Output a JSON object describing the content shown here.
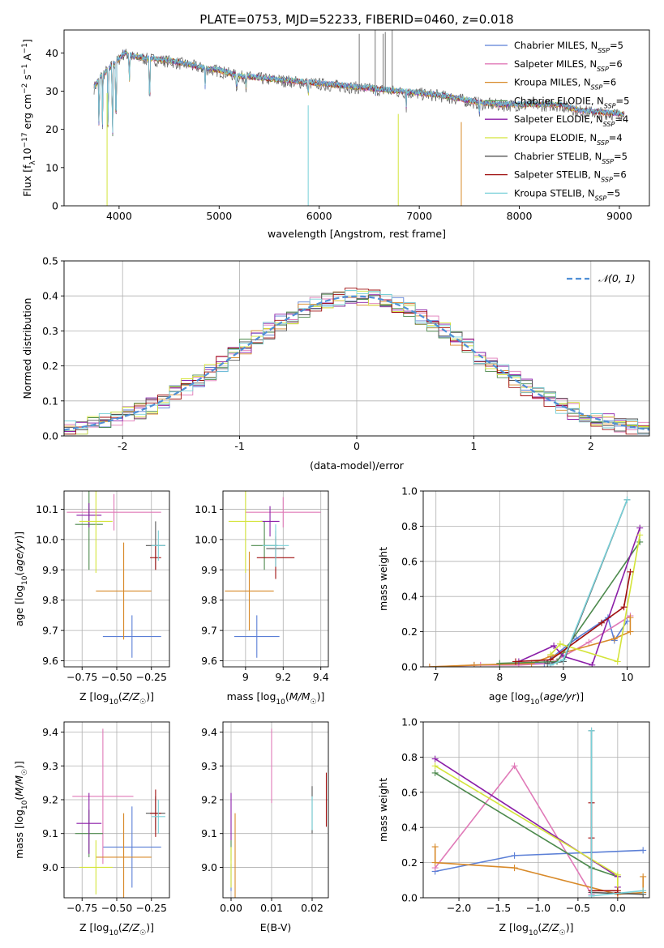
{
  "figure_title": "PLATE=0753, MJD=52233, FIBERID=0460, z=0.018",
  "colors": {
    "Chabrier MILES": "#5b7fd6",
    "Salpeter MILES": "#e07ab8",
    "Kroupa MILES": "#d88a2a",
    "Chabrier ELODIE": "#4d8a4d",
    "Salpeter ELODIE": "#8b1fa8",
    "Kroupa ELODIE": "#d4e43a",
    "Chabrier STELIB": "#555555",
    "Salpeter STELIB": "#a01010",
    "Kroupa STELIB": "#78d0d8",
    "model_line": "#4f8fd6",
    "grid": "#b0b0b0"
  },
  "chart_data": [
    {
      "id": "spectrum",
      "type": "line",
      "title": "",
      "xlabel": "wavelength [Angstrom, rest frame]",
      "ylabel": "Flux [f_λ 10^-17 erg cm^-2 s^-1 A^-1]",
      "xlim": [
        3450,
        9300
      ],
      "ylim": [
        0,
        46
      ],
      "xticks": [
        4000,
        5000,
        6000,
        7000,
        8000,
        9000
      ],
      "yticks": [
        0,
        10,
        20,
        30,
        40
      ],
      "grid": false,
      "legend_placement": "upper-right",
      "series": [
        {
          "name": "Chabrier MILES",
          "nssp": "5"
        },
        {
          "name": "Salpeter MILES",
          "nssp": "6"
        },
        {
          "name": "Kroupa MILES",
          "nssp": "6"
        },
        {
          "name": "Chabrier ELODIE",
          "nssp": "5"
        },
        {
          "name": "Salpeter ELODIE",
          "nssp": "4"
        },
        {
          "name": "Kroupa ELODIE",
          "nssp": "4"
        },
        {
          "name": "Chabrier STELIB",
          "nssp": "5"
        },
        {
          "name": "Salpeter STELIB",
          "nssp": "6"
        },
        {
          "name": "Kroupa STELIB",
          "nssp": "5"
        }
      ],
      "continuum": [
        [
          3750,
          31
        ],
        [
          3820,
          34
        ],
        [
          3900,
          36
        ],
        [
          3980,
          38
        ],
        [
          4050,
          40
        ],
        [
          4150,
          39
        ],
        [
          4300,
          38.5
        ],
        [
          4500,
          38
        ],
        [
          4700,
          37
        ],
        [
          4860,
          36
        ],
        [
          5000,
          35.5
        ],
        [
          5200,
          34
        ],
        [
          5400,
          33.5
        ],
        [
          5600,
          33
        ],
        [
          5800,
          32.5
        ],
        [
          6000,
          32
        ],
        [
          6200,
          31.5
        ],
        [
          6400,
          31
        ],
        [
          6600,
          30.5
        ],
        [
          6800,
          30
        ],
        [
          7000,
          29.5
        ],
        [
          7200,
          29
        ],
        [
          7400,
          28
        ],
        [
          7600,
          27
        ],
        [
          7800,
          26.5
        ],
        [
          8000,
          26.5
        ],
        [
          8200,
          26.5
        ],
        [
          8400,
          26.5
        ],
        [
          8600,
          25
        ],
        [
          8800,
          24.5
        ],
        [
          9050,
          24
        ]
      ],
      "absorption_lines": [
        [
          3800,
          16
        ],
        [
          3835,
          18
        ],
        [
          3890,
          14
        ],
        [
          3934,
          10
        ],
        [
          3969,
          12
        ],
        [
          4102,
          30
        ],
        [
          4305,
          20
        ],
        [
          4861,
          30
        ],
        [
          5175,
          29
        ],
        [
          5270,
          30
        ],
        [
          5890,
          28
        ],
        [
          6563,
          29
        ],
        [
          6870,
          26
        ],
        [
          7600,
          23
        ]
      ],
      "spikes": [
        [
          6400,
          45
        ],
        [
          6560,
          46
        ],
        [
          6640,
          45
        ],
        [
          6660,
          45.5
        ],
        [
          6730,
          46
        ]
      ],
      "dropouts": [
        {
          "x": 3880,
          "series": "Kroupa ELODIE"
        },
        {
          "x": 5890,
          "series": "Kroupa STELIB"
        },
        {
          "x": 6790,
          "series": "Kroupa ELODIE"
        },
        {
          "x": 7420,
          "series": "Kroupa MILES"
        }
      ]
    },
    {
      "id": "residuals",
      "type": "histogram",
      "xlabel": "(data-model)/error",
      "ylabel": "Normed distribution",
      "xlim": [
        -2.5,
        2.5
      ],
      "ylim": [
        0,
        0.5
      ],
      "xticks": [
        -2,
        -1,
        0,
        1,
        2
      ],
      "yticks": [
        0.0,
        0.1,
        0.2,
        0.3,
        0.4,
        0.5
      ],
      "grid": true,
      "bin_width": 0.1,
      "legend_placement": "upper-right",
      "model_legend": "𝒩(0, 1)"
    },
    {
      "id": "age_vs_Z",
      "type": "scatter",
      "xlabel": "Z [log10(Z/Z☉)]",
      "ylabel": "age  [log10(age/yr)]",
      "xlim": [
        -0.88,
        -0.12
      ],
      "ylim": [
        9.58,
        10.16
      ],
      "xticks": [
        -0.75,
        -0.5,
        -0.25
      ],
      "xtick_labels": [
        "−0.75",
        "−0.50",
        "−0.25"
      ],
      "yticks": [
        9.6,
        9.7,
        9.8,
        9.9,
        10.0,
        10.1
      ],
      "grid": true,
      "points": [
        {
          "series": "Chabrier MILES",
          "x": -0.39,
          "y": 9.68,
          "xerr": 0.21,
          "yerr": 0.07
        },
        {
          "series": "Salpeter MILES",
          "x": -0.52,
          "y": 10.09,
          "xerr": 0.34,
          "yerr": 0.06
        },
        {
          "series": "Kroupa MILES",
          "x": -0.45,
          "y": 9.83,
          "xerr": 0.2,
          "yerr": 0.16
        },
        {
          "series": "Chabrier ELODIE",
          "x": -0.7,
          "y": 10.05,
          "xerr": 0.1,
          "yerr": 0.15
        },
        {
          "series": "Salpeter ELODIE",
          "x": -0.7,
          "y": 10.08,
          "xerr": 0.09,
          "yerr": 0.04
        },
        {
          "series": "Kroupa ELODIE",
          "x": -0.65,
          "y": 10.06,
          "xerr": 0.12,
          "yerr": 0.17
        },
        {
          "series": "Chabrier STELIB",
          "x": -0.22,
          "y": 9.98,
          "xerr": 0.07,
          "yerr": 0.08
        },
        {
          "series": "Salpeter STELIB",
          "x": -0.22,
          "y": 9.94,
          "xerr": 0.04,
          "yerr": 0.04
        },
        {
          "series": "Kroupa STELIB",
          "x": -0.2,
          "y": 9.98,
          "xerr": 0.05,
          "yerr": 0.05
        }
      ]
    },
    {
      "id": "age_vs_mass",
      "type": "scatter",
      "xlabel": "mass [log10(M/M☉)]",
      "ylabel": "",
      "xlim": [
        8.88,
        9.44
      ],
      "ylim": [
        9.58,
        10.16
      ],
      "xticks": [
        9.0,
        9.2,
        9.4
      ],
      "yticks": [
        9.6,
        9.7,
        9.8,
        9.9,
        10.0,
        10.1
      ],
      "grid": true,
      "points": [
        {
          "series": "Chabrier MILES",
          "x": 9.06,
          "y": 9.68,
          "xerr": 0.12,
          "yerr": 0.07
        },
        {
          "series": "Salpeter MILES",
          "x": 9.2,
          "y": 10.09,
          "xerr": 0.2,
          "yerr": 0.05
        },
        {
          "series": "Kroupa MILES",
          "x": 9.02,
          "y": 9.83,
          "xerr": 0.13,
          "yerr": 0.13
        },
        {
          "series": "Chabrier ELODIE",
          "x": 9.1,
          "y": 9.98,
          "xerr": 0.07,
          "yerr": 0.08
        },
        {
          "series": "Salpeter ELODIE",
          "x": 9.13,
          "y": 10.06,
          "xerr": 0.05,
          "yerr": 0.05
        },
        {
          "series": "Kroupa ELODIE",
          "x": 9.0,
          "y": 10.06,
          "xerr": 0.09,
          "yerr": 0.17
        },
        {
          "series": "Chabrier STELIB",
          "x": 9.16,
          "y": 9.97,
          "xerr": 0.05,
          "yerr": 0.06
        },
        {
          "series": "Salpeter STELIB",
          "x": 9.16,
          "y": 9.94,
          "xerr": 0.1,
          "yerr": 0.07
        },
        {
          "series": "Kroupa STELIB",
          "x": 9.16,
          "y": 9.98,
          "xerr": 0.07,
          "yerr": 0.07
        }
      ]
    },
    {
      "id": "weight_vs_age",
      "type": "line",
      "xlabel": "age  [log10(age/yr)]",
      "ylabel": "mass weight",
      "xlim": [
        6.8,
        10.35
      ],
      "ylim": [
        0,
        1.0
      ],
      "xticks": [
        7,
        8,
        9,
        10
      ],
      "yticks": [
        0.0,
        0.2,
        0.4,
        0.6,
        0.8,
        1.0
      ],
      "grid": true,
      "series": [
        {
          "name": "Chabrier MILES",
          "x": [
            7.6,
            8.7,
            9.2,
            9.7,
            9.8,
            10.0
          ],
          "y": [
            0.01,
            0.02,
            0.16,
            0.28,
            0.15,
            0.26
          ]
        },
        {
          "name": "Salpeter MILES",
          "x": [
            6.9,
            7.7,
            8.3,
            8.8,
            9.4,
            10.05
          ],
          "y": [
            0.0,
            0.01,
            0.01,
            0.02,
            0.14,
            0.29
          ]
        },
        {
          "name": "Kroupa MILES",
          "x": [
            6.9,
            7.6,
            8.5,
            8.8,
            9.8,
            10.05,
            10.05
          ],
          "y": [
            0.0,
            0.01,
            0.02,
            0.06,
            0.16,
            0.2,
            0.28
          ]
        },
        {
          "name": "Chabrier ELODIE",
          "x": [
            8.0,
            8.9,
            10.2
          ],
          "y": [
            0.02,
            0.03,
            0.71
          ]
        },
        {
          "name": "Salpeter ELODIE",
          "x": [
            8.3,
            8.85,
            9.0,
            9.45,
            10.2
          ],
          "y": [
            0.03,
            0.12,
            0.06,
            0.01,
            0.79
          ]
        },
        {
          "name": "Kroupa ELODIE",
          "x": [
            8.8,
            8.95,
            9.85,
            10.2
          ],
          "y": [
            0.07,
            0.13,
            0.03,
            0.75
          ]
        },
        {
          "name": "Chabrier STELIB",
          "x": [
            8.75,
            9.0,
            10.0
          ],
          "y": [
            0.02,
            0.03,
            0.95
          ]
        },
        {
          "name": "Salpeter STELIB",
          "x": [
            8.25,
            8.8,
            9.6,
            9.95,
            10.05
          ],
          "y": [
            0.03,
            0.04,
            0.25,
            0.34,
            0.54
          ]
        },
        {
          "name": "Kroupa STELIB",
          "x": [
            8.8,
            9.0,
            10.0
          ],
          "y": [
            0.01,
            0.04,
            0.95
          ]
        }
      ]
    },
    {
      "id": "mass_vs_Z",
      "type": "scatter",
      "xlabel": "Z [log10(Z/Z☉)]",
      "ylabel": "mass [log10(M/M☉)]",
      "xlim": [
        -0.88,
        -0.12
      ],
      "ylim": [
        8.91,
        9.43
      ],
      "xticks": [
        -0.75,
        -0.5,
        -0.25
      ],
      "xtick_labels": [
        "−0.75",
        "−0.50",
        "−0.25"
      ],
      "yticks": [
        9.0,
        9.1,
        9.2,
        9.3,
        9.4
      ],
      "grid": true,
      "points": [
        {
          "series": "Chabrier MILES",
          "x": -0.39,
          "y": 9.06,
          "xerr": 0.21,
          "yerr": 0.12
        },
        {
          "series": "Salpeter MILES",
          "x": -0.6,
          "y": 9.21,
          "xerr": 0.22,
          "yerr": 0.2
        },
        {
          "series": "Kroupa MILES",
          "x": -0.45,
          "y": 9.03,
          "xerr": 0.2,
          "yerr": 0.13
        },
        {
          "series": "Chabrier ELODIE",
          "x": -0.7,
          "y": 9.1,
          "xerr": 0.1,
          "yerr": 0.07
        },
        {
          "series": "Salpeter ELODIE",
          "x": -0.7,
          "y": 9.13,
          "xerr": 0.09,
          "yerr": 0.09
        },
        {
          "series": "Kroupa ELODIE",
          "x": -0.65,
          "y": 9.0,
          "xerr": 0.12,
          "yerr": 0.08
        },
        {
          "series": "Chabrier STELIB",
          "x": -0.22,
          "y": 9.16,
          "xerr": 0.07,
          "yerr": 0.05
        },
        {
          "series": "Salpeter STELIB",
          "x": -0.22,
          "y": 9.16,
          "xerr": 0.04,
          "yerr": 0.07
        },
        {
          "series": "Kroupa STELIB",
          "x": -0.2,
          "y": 9.15,
          "xerr": 0.05,
          "yerr": 0.05
        }
      ]
    },
    {
      "id": "mass_vs_ebv",
      "type": "scatter",
      "xlabel": "E(B-V)",
      "ylabel": "",
      "xlim": [
        -0.002,
        0.024
      ],
      "ylim": [
        8.91,
        9.43
      ],
      "xticks": [
        0.0,
        0.01,
        0.02
      ],
      "xtick_labels": [
        "0.00",
        "0.01",
        "0.02"
      ],
      "yticks": [
        9.0,
        9.1,
        9.2,
        9.3,
        9.4
      ],
      "grid": true,
      "points": [
        {
          "series": "Chabrier MILES",
          "x": 0.0,
          "y": 8.97,
          "xerr": 0,
          "yerr": 0.04
        },
        {
          "series": "Salpeter MILES",
          "x": 0.01,
          "y": 9.3,
          "xerr": 0,
          "yerr": 0.11
        },
        {
          "series": "Kroupa MILES",
          "x": 0.001,
          "y": 9.03,
          "xerr": 0,
          "yerr": 0.13
        },
        {
          "series": "Chabrier ELODIE",
          "x": 0.0,
          "y": 9.05,
          "xerr": 0,
          "yerr": 0.03
        },
        {
          "series": "Salpeter ELODIE",
          "x": 0.0,
          "y": 9.15,
          "xerr": 0,
          "yerr": 0.07
        },
        {
          "series": "Kroupa ELODIE",
          "x": 0.0,
          "y": 9.0,
          "xerr": 0,
          "yerr": 0.06
        },
        {
          "series": "Chabrier STELIB",
          "x": 0.02,
          "y": 9.17,
          "xerr": 0,
          "yerr": 0.07
        },
        {
          "series": "Salpeter STELIB",
          "x": 0.0235,
          "y": 9.2,
          "xerr": 0,
          "yerr": 0.08
        },
        {
          "series": "Kroupa STELIB",
          "x": 0.02,
          "y": 9.16,
          "xerr": 0,
          "yerr": 0.05
        }
      ]
    },
    {
      "id": "weight_vs_Z",
      "type": "line",
      "xlabel": "Z [log10(Z/Z☉)]",
      "ylabel": "mass weight",
      "xlim": [
        -2.45,
        0.4
      ],
      "ylim": [
        0,
        1.0
      ],
      "xticks": [
        -2.0,
        -1.5,
        -1.0,
        -0.5,
        0.0
      ],
      "xtick_labels": [
        "−2.0",
        "−1.5",
        "−1.0",
        "−0.5",
        "0.0"
      ],
      "yticks": [
        0.0,
        0.2,
        0.4,
        0.6,
        0.8,
        1.0
      ],
      "grid": true,
      "series": [
        {
          "name": "Chabrier MILES",
          "x": [
            -2.3,
            -1.3,
            0.32
          ],
          "y": [
            0.15,
            0.24,
            0.27
          ]
        },
        {
          "name": "Salpeter MILES",
          "x": [
            -2.3,
            -1.3,
            -0.33
          ],
          "y": [
            0.17,
            0.75,
            0.02
          ]
        },
        {
          "name": "Kroupa MILES",
          "x": [
            -2.3,
            -2.3,
            -1.3,
            0.0,
            0.32,
            0.32
          ],
          "y": [
            0.29,
            0.2,
            0.17,
            0.02,
            0.03,
            0.12
          ]
        },
        {
          "name": "Chabrier ELODIE",
          "x": [
            -2.3,
            -0.33,
            0.0
          ],
          "y": [
            0.71,
            0.17,
            0.12
          ]
        },
        {
          "name": "Salpeter ELODIE",
          "x": [
            -2.3,
            0.0,
            0.0
          ],
          "y": [
            0.79,
            0.12,
            0.06
          ]
        },
        {
          "name": "Kroupa ELODIE",
          "x": [
            -2.3,
            0.0,
            0.0
          ],
          "y": [
            0.75,
            0.13,
            0.04
          ]
        },
        {
          "name": "Chabrier STELIB",
          "x": [
            -0.33,
            -0.33,
            0.32
          ],
          "y": [
            0.95,
            0.03,
            0.02
          ]
        },
        {
          "name": "Salpeter STELIB",
          "x": [
            -0.33,
            -0.33,
            -0.33,
            0.0,
            0.0
          ],
          "y": [
            0.54,
            0.34,
            0.04,
            0.04,
            0.03
          ]
        },
        {
          "name": "Kroupa STELIB",
          "x": [
            -0.33,
            -0.33,
            0.32
          ],
          "y": [
            0.95,
            0.01,
            0.04
          ]
        }
      ]
    }
  ]
}
